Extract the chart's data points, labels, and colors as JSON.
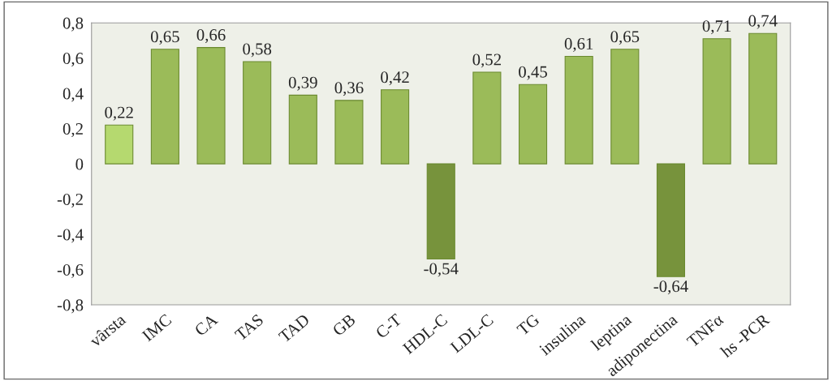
{
  "chart_data": {
    "type": "bar",
    "categories": [
      "vârsta",
      "IMC",
      "CA",
      "TAS",
      "TAD",
      "GB",
      "C-T",
      "HDL-C",
      "LDL-C",
      "TG",
      "insulina",
      "leptina",
      "adiponectina",
      "TNFα",
      "hs -PCR"
    ],
    "values": [
      0.22,
      0.65,
      0.66,
      0.58,
      0.39,
      0.36,
      0.42,
      -0.54,
      0.52,
      0.45,
      0.61,
      0.65,
      -0.64,
      0.71,
      0.74
    ],
    "colors": [
      "#b5d96f",
      "#9bbb59",
      "#9bbb59",
      "#9bbb59",
      "#9bbb59",
      "#9bbb59",
      "#9bbb59",
      "#77933c",
      "#9bbb59",
      "#9bbb59",
      "#9bbb59",
      "#9bbb59",
      "#77933c",
      "#9bbb59",
      "#9bbb59"
    ],
    "value_labels": [
      "0,22",
      "0,65",
      "0,66",
      "0,58",
      "0,39",
      "0,36",
      "0,42",
      "-0,54",
      "0,52",
      "0,45",
      "0,61",
      "0,65",
      "-0,64",
      "0,71",
      "0,74"
    ],
    "ylim": [
      -0.8,
      0.8
    ],
    "yticks": [
      {
        "value": -0.8,
        "label": "-0,8"
      },
      {
        "value": -0.6,
        "label": "-0,6"
      },
      {
        "value": -0.4,
        "label": "-0,4"
      },
      {
        "value": -0.2,
        "label": "-0,2"
      },
      0,
      {
        "value": 0.2,
        "label": "0,2"
      },
      {
        "value": 0.4,
        "label": "0,4"
      },
      {
        "value": 0.6,
        "label": "0,6"
      },
      {
        "value": 0.8,
        "label": "0,8"
      }
    ],
    "grid": false,
    "legend": false
  }
}
